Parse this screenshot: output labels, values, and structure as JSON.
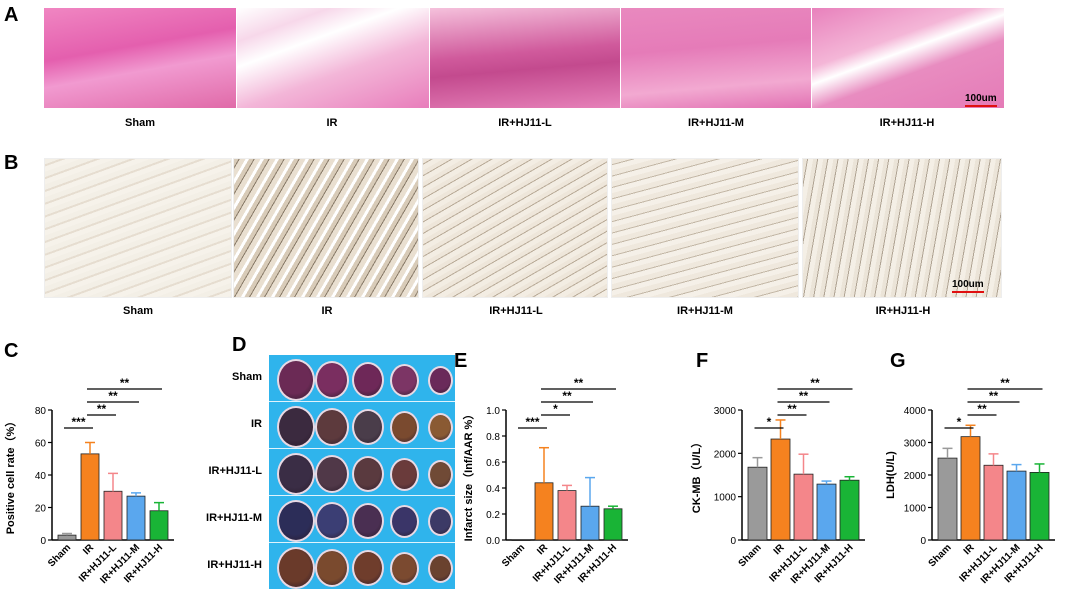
{
  "panels": {
    "A": {
      "label": "A",
      "captions": [
        "Sham",
        "IR",
        "IR+HJ11-L",
        "IR+HJ11-M",
        "IR+HJ11-H"
      ],
      "scale": "100um"
    },
    "B": {
      "label": "B",
      "captions": [
        "Sham",
        "IR",
        "IR+HJ11-L",
        "IR+HJ11-M",
        "IR+HJ11-H"
      ],
      "scale": "100um"
    },
    "C": {
      "label": "C"
    },
    "D": {
      "label": "D",
      "row_labels": [
        "Sham",
        "IR",
        "IR+HJ11-L",
        "IR+HJ11-M",
        "IR+HJ11-H"
      ]
    },
    "E": {
      "label": "E"
    },
    "F": {
      "label": "F"
    },
    "G": {
      "label": "G"
    }
  },
  "colors": {
    "sham": "#9a9a9a",
    "ir": "#f5821f",
    "low": "#f4868a",
    "mid": "#5aa7ee",
    "high": "#19b436",
    "he_pink": "#e46bb3",
    "ttc_bg": "#2fb4ec"
  },
  "chart_data": [
    {
      "id": "C",
      "type": "bar",
      "categories": [
        "Sham",
        "IR",
        "IR+HJ11-L",
        "IR+HJ11-M",
        "IR+HJ11-H"
      ],
      "values": [
        3,
        53,
        30,
        27,
        18
      ],
      "errors": [
        1,
        7,
        11,
        2,
        5
      ],
      "ylabel": "Positive cell rate（%）",
      "ylim": [
        0,
        80
      ],
      "yticks": [
        "0",
        "20",
        "40",
        "60",
        "80"
      ],
      "significance": [
        {
          "from": 0,
          "to": 1,
          "label": "***"
        },
        {
          "from": 1,
          "to": 2,
          "label": "**"
        },
        {
          "from": 1,
          "to": 3,
          "label": "**"
        },
        {
          "from": 1,
          "to": 4,
          "label": "**"
        }
      ]
    },
    {
      "id": "E",
      "type": "bar",
      "categories": [
        "Sham",
        "IR",
        "IR+HJ11-L",
        "IR+HJ11-M",
        "IR+HJ11-H"
      ],
      "values": [
        0,
        0.44,
        0.38,
        0.26,
        0.24
      ],
      "errors": [
        0,
        0.27,
        0.04,
        0.22,
        0.02
      ],
      "ylabel": "Infarct size（Inf/AAR %）",
      "ylim": [
        0,
        1.0
      ],
      "yticks": [
        "0.0",
        "0.2",
        "0.4",
        "0.6",
        "0.8",
        "1.0"
      ],
      "significance": [
        {
          "from": 0,
          "to": 1,
          "label": "***"
        },
        {
          "from": 1,
          "to": 2,
          "label": "*"
        },
        {
          "from": 1,
          "to": 3,
          "label": "**"
        },
        {
          "from": 1,
          "to": 4,
          "label": "**"
        }
      ]
    },
    {
      "id": "F",
      "type": "bar",
      "categories": [
        "Sham",
        "IR",
        "IR+HJ11-L",
        "IR+HJ11-M",
        "IR+HJ11-H"
      ],
      "values": [
        1680,
        2330,
        1520,
        1290,
        1380
      ],
      "errors": [
        220,
        440,
        460,
        70,
        80
      ],
      "ylabel": "CK-MB（U/L）",
      "ylim": [
        0,
        3000
      ],
      "yticks": [
        "0",
        "1000",
        "2000",
        "3000"
      ],
      "significance": [
        {
          "from": 0,
          "to": 1,
          "label": "*"
        },
        {
          "from": 1,
          "to": 2,
          "label": "**"
        },
        {
          "from": 1,
          "to": 3,
          "label": "**"
        },
        {
          "from": 1,
          "to": 4,
          "label": "**"
        }
      ]
    },
    {
      "id": "G",
      "type": "bar",
      "categories": [
        "Sham",
        "IR",
        "IR+HJ11-L",
        "IR+HJ11-M",
        "IR+HJ11-H"
      ],
      "values": [
        2520,
        3180,
        2300,
        2120,
        2080
      ],
      "errors": [
        300,
        350,
        350,
        200,
        260
      ],
      "ylabel": "LDH(U/L)",
      "ylim": [
        0,
        4000
      ],
      "yticks": [
        "0",
        "1000",
        "2000",
        "3000",
        "4000"
      ],
      "significance": [
        {
          "from": 0,
          "to": 1,
          "label": "*"
        },
        {
          "from": 1,
          "to": 2,
          "label": "**"
        },
        {
          "from": 1,
          "to": 3,
          "label": "**"
        },
        {
          "from": 1,
          "to": 4,
          "label": "**"
        }
      ]
    }
  ]
}
